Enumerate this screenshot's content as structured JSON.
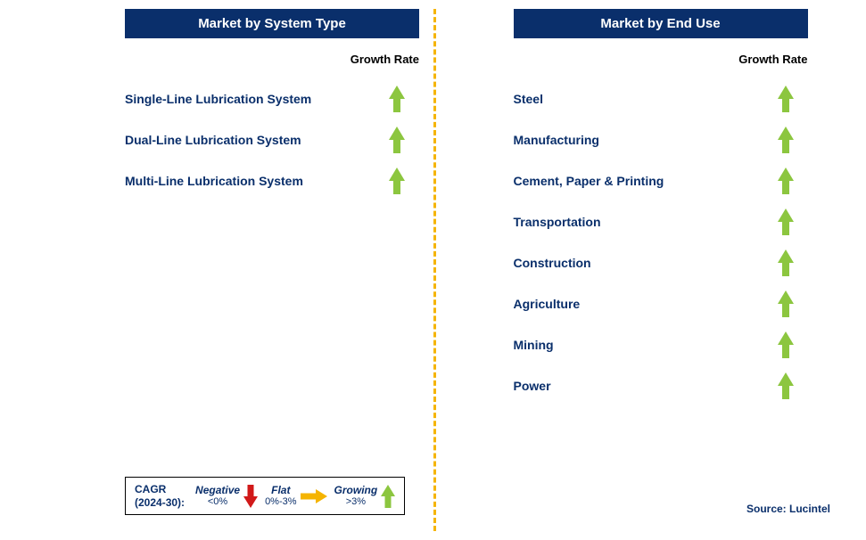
{
  "colors": {
    "header_bg": "#0a2f6b",
    "text_navy": "#0a2f6b",
    "arrow_green": "#8cc63f",
    "arrow_red": "#d11919",
    "arrow_yellow": "#f5b400",
    "divider": "#f5b400",
    "black": "#000000"
  },
  "left": {
    "title": "Market by System Type",
    "growth_label": "Growth Rate",
    "items": [
      {
        "label": "Single-Line Lubrication System",
        "trend": "up"
      },
      {
        "label": "Dual-Line Lubrication System",
        "trend": "up"
      },
      {
        "label": "Multi-Line Lubrication System",
        "trend": "up"
      }
    ]
  },
  "right": {
    "title": "Market by End Use",
    "growth_label": "Growth Rate",
    "items": [
      {
        "label": "Steel",
        "trend": "up"
      },
      {
        "label": "Manufacturing",
        "trend": "up"
      },
      {
        "label": "Cement, Paper & Printing",
        "trend": "up"
      },
      {
        "label": "Transportation",
        "trend": "up"
      },
      {
        "label": "Construction",
        "trend": "up"
      },
      {
        "label": "Agriculture",
        "trend": "up"
      },
      {
        "label": "Mining",
        "trend": "up"
      },
      {
        "label": "Power",
        "trend": "up"
      }
    ]
  },
  "legend": {
    "title_line1": "CAGR",
    "title_line2": "(2024-30):",
    "negative_label": "Negative",
    "negative_range": "<0%",
    "flat_label": "Flat",
    "flat_range": "0%-3%",
    "growing_label": "Growing",
    "growing_range": ">3%"
  },
  "source": "Source: Lucintel"
}
